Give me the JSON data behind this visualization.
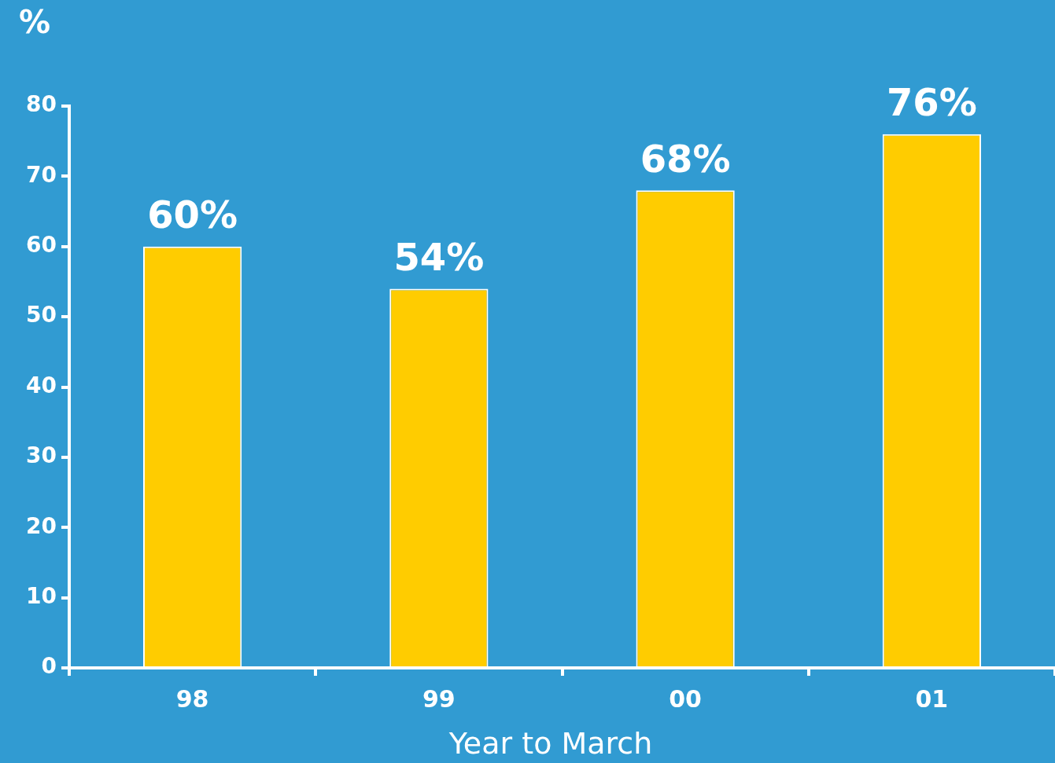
{
  "chart_data": {
    "type": "bar",
    "ylabel": "%",
    "xlabel": "Year to March",
    "categories": [
      "98",
      "99",
      "00",
      "01"
    ],
    "values": [
      60,
      54,
      68,
      76
    ],
    "value_labels": [
      "60%",
      "54%",
      "68%",
      "76%"
    ],
    "color": "#ffcc00",
    "ylim": [
      0,
      80
    ],
    "yticks": [
      0,
      10,
      20,
      30,
      40,
      50,
      60,
      70,
      80
    ],
    "grid": false,
    "legend": false
  }
}
